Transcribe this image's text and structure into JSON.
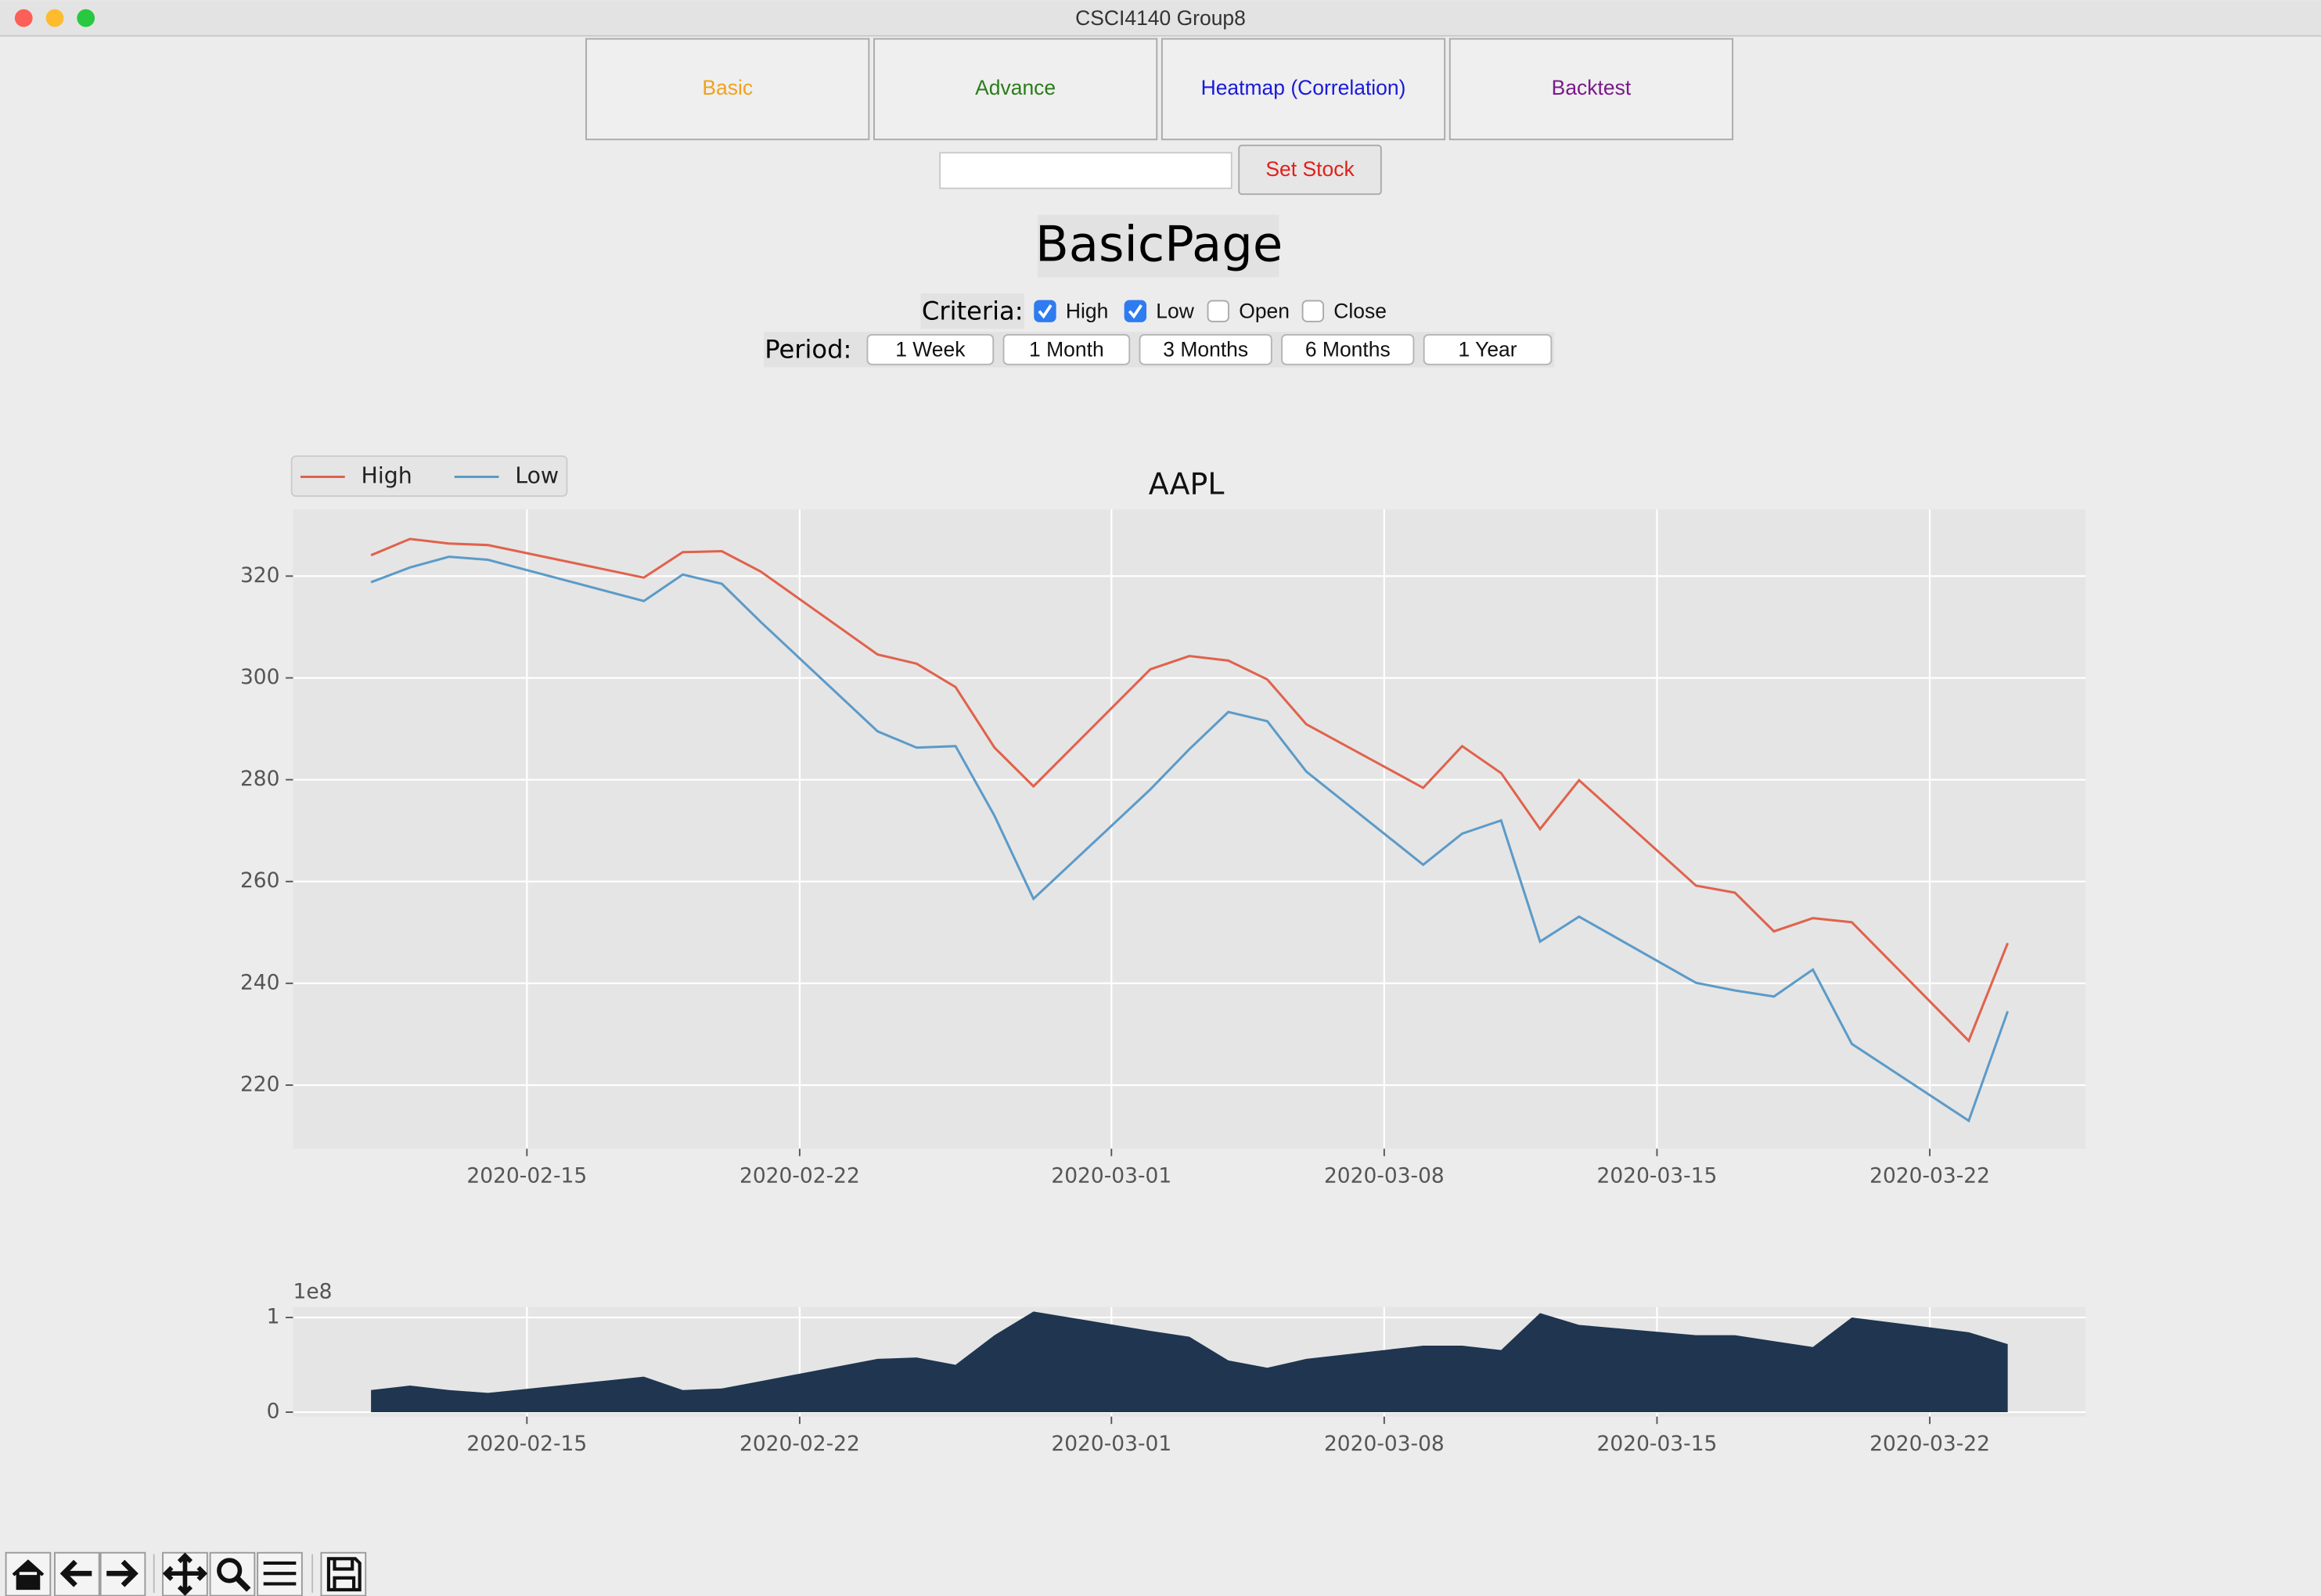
{
  "window_title": "CSCI4140 Group8",
  "tabs": [
    "Basic",
    "Advance",
    "Heatmap (Correlation)",
    "Backtest"
  ],
  "stock_button": "Set Stock",
  "page_title": "BasicPage",
  "criteria": {
    "label": "Criteria:",
    "options": [
      {
        "label": "High",
        "checked": true
      },
      {
        "label": "Low",
        "checked": true
      },
      {
        "label": "Open",
        "checked": false
      },
      {
        "label": "Close",
        "checked": false
      }
    ]
  },
  "period": {
    "label": "Period:",
    "options": [
      "1 Week",
      "1 Month",
      "3 Months",
      "6 Months",
      "1 Year"
    ]
  },
  "chart_data": [
    {
      "type": "line",
      "title": "AAPL",
      "x": [
        "2020-02-11",
        "2020-02-12",
        "2020-02-13",
        "2020-02-14",
        "2020-02-18",
        "2020-02-19",
        "2020-02-20",
        "2020-02-21",
        "2020-02-24",
        "2020-02-25",
        "2020-02-26",
        "2020-02-27",
        "2020-02-28",
        "2020-03-02",
        "2020-03-03",
        "2020-03-04",
        "2020-03-05",
        "2020-03-06",
        "2020-03-09",
        "2020-03-10",
        "2020-03-11",
        "2020-03-12",
        "2020-03-13",
        "2020-03-16",
        "2020-03-17",
        "2020-03-18",
        "2020-03-19",
        "2020-03-20",
        "2020-03-23",
        "2020-03-24"
      ],
      "xlim": [
        "2020-02-09",
        "2020-03-26"
      ],
      "xticks": [
        "2020-02-15",
        "2020-02-22",
        "2020-03-01",
        "2020-03-08",
        "2020-03-15",
        "2020-03-22"
      ],
      "ylim": [
        207.5,
        333.1
      ],
      "yticks": [
        220,
        240,
        260,
        280,
        300,
        320
      ],
      "grid": true,
      "legend": "upper left",
      "series": [
        {
          "name": "High",
          "color": "#e0624c",
          "values": [
            324.1,
            327.3,
            326.4,
            326.1,
            319.7,
            324.7,
            324.9,
            320.9,
            304.6,
            302.8,
            298.2,
            286.3,
            278.7,
            301.7,
            304.3,
            303.4,
            299.7,
            290.9,
            278.4,
            286.6,
            281.3,
            270.3,
            279.9,
            259.2,
            257.8,
            250.2,
            252.8,
            252.0,
            228.7,
            247.9
          ]
        },
        {
          "name": "Low",
          "color": "#5b9bc8",
          "values": [
            318.8,
            321.7,
            323.8,
            323.2,
            315.1,
            320.3,
            318.5,
            311.0,
            289.5,
            286.3,
            286.6,
            272.9,
            256.6,
            278.1,
            286.0,
            293.3,
            291.5,
            281.6,
            263.3,
            269.4,
            272.0,
            248.2,
            253.1,
            240.1,
            238.6,
            237.4,
            242.7,
            228.1,
            213.0,
            234.5
          ]
        }
      ]
    },
    {
      "type": "area",
      "x": [
        "2020-02-11",
        "2020-02-12",
        "2020-02-13",
        "2020-02-14",
        "2020-02-18",
        "2020-02-19",
        "2020-02-20",
        "2020-02-21",
        "2020-02-24",
        "2020-02-25",
        "2020-02-26",
        "2020-02-27",
        "2020-02-28",
        "2020-03-02",
        "2020-03-03",
        "2020-03-04",
        "2020-03-05",
        "2020-03-06",
        "2020-03-09",
        "2020-03-10",
        "2020-03-11",
        "2020-03-12",
        "2020-03-13",
        "2020-03-16",
        "2020-03-17",
        "2020-03-18",
        "2020-03-19",
        "2020-03-20",
        "2020-03-23",
        "2020-03-24"
      ],
      "xlim": [
        "2020-02-09",
        "2020-03-26"
      ],
      "xticks": [
        "2020-02-15",
        "2020-02-22",
        "2020-03-01",
        "2020-03-08",
        "2020-03-15",
        "2020-03-22"
      ],
      "ylim": [
        -4700000,
        111000000
      ],
      "yticks": [
        0,
        {
          "value": 100000000,
          "label": "1"
        }
      ],
      "y_offset_label": "1e8",
      "grid": true,
      "color": "#1f3550",
      "values": [
        23400000,
        28100000,
        23400000,
        20300000,
        37500000,
        23400000,
        25000000,
        32800000,
        56300000,
        57800000,
        50000000,
        81300000,
        106300000,
        85900000,
        79700000,
        54700000,
        46900000,
        56300000,
        70300000,
        70300000,
        65600000,
        104700000,
        92200000,
        81300000,
        81300000,
        75000000,
        68800000,
        100000000,
        84400000,
        71900000
      ]
    }
  ]
}
